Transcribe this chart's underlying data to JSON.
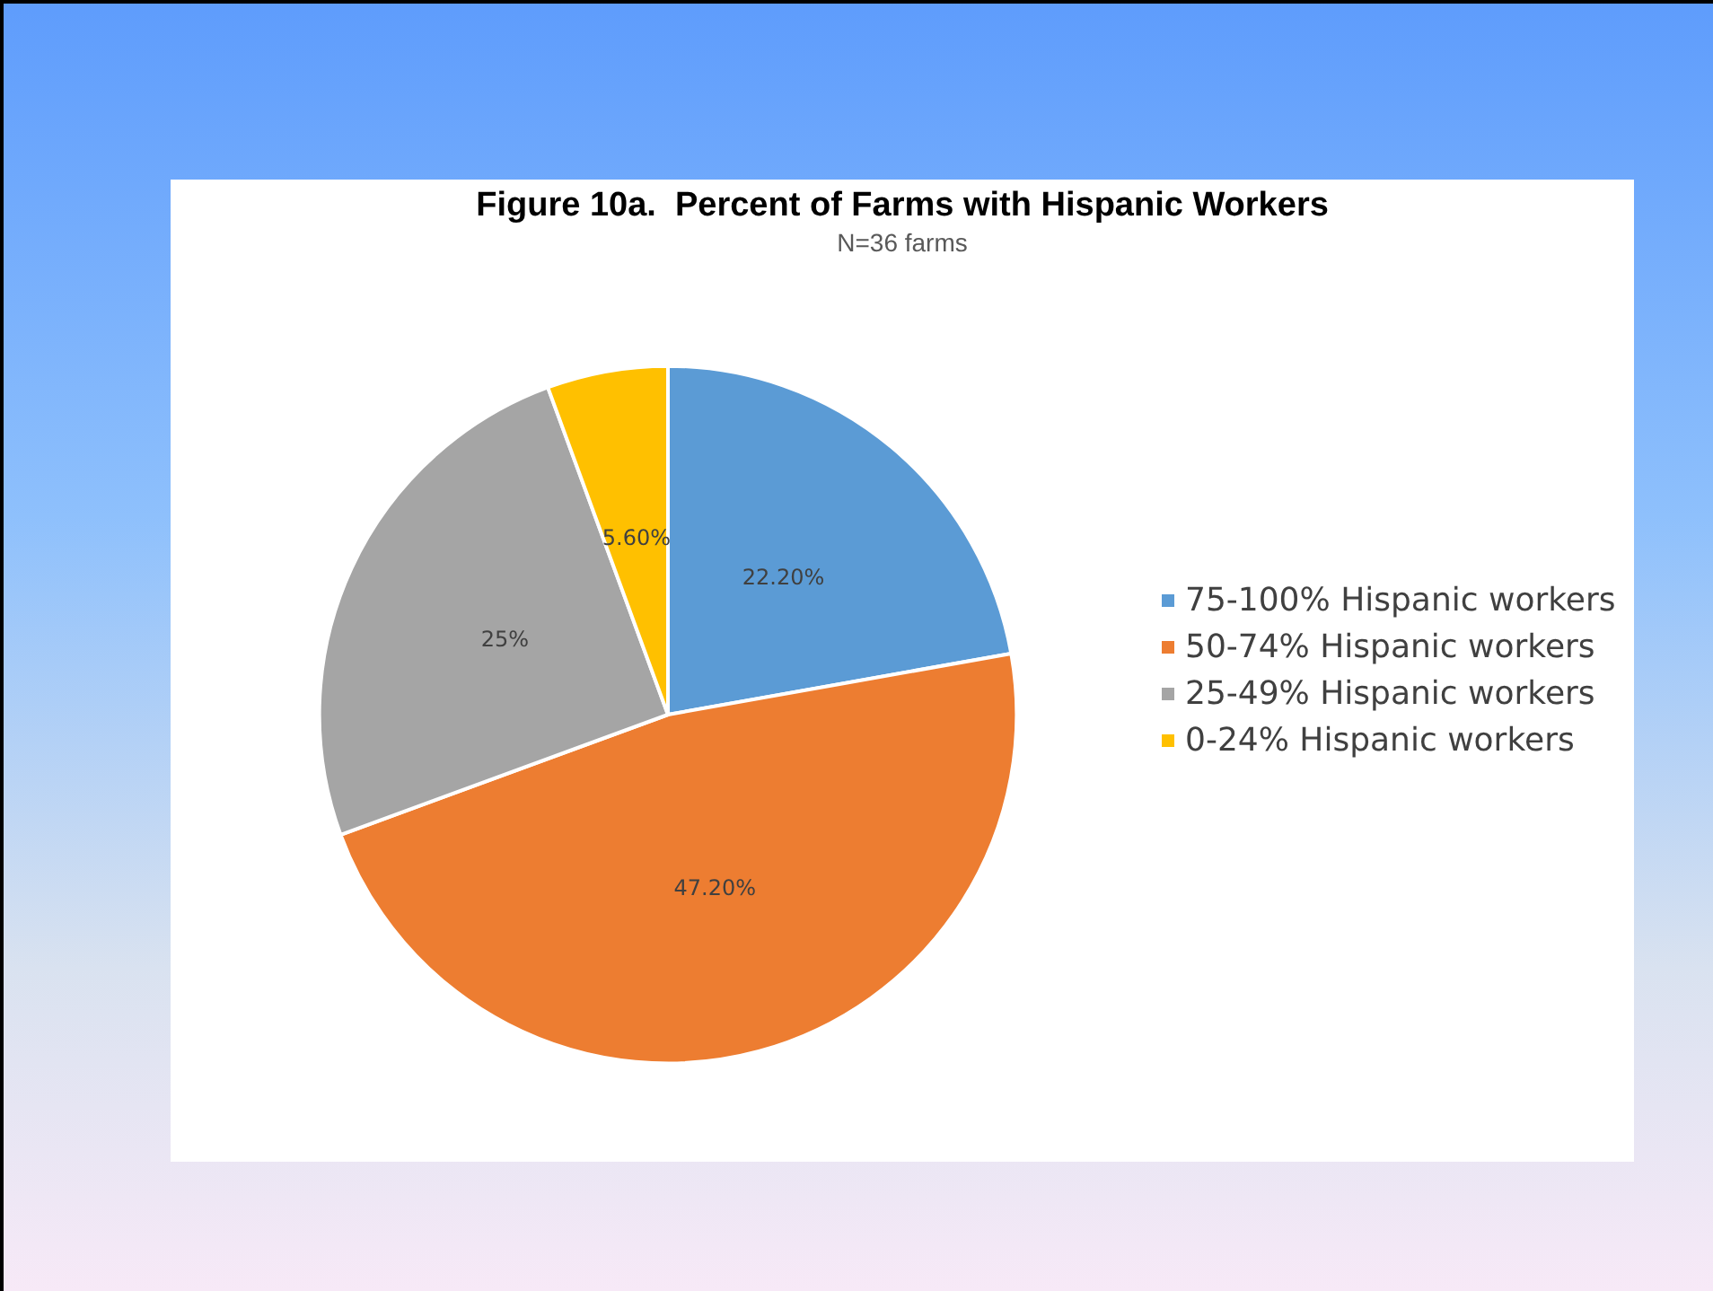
{
  "chart_data": {
    "type": "pie",
    "title": "Figure 10a.  Percent of Farms with Hispanic Workers",
    "subtitle": "N=36 farms",
    "categories": [
      "75-100% Hispanic workers",
      "50-74% Hispanic workers",
      "25-49% Hispanic workers",
      "0-24% Hispanic workers"
    ],
    "values": [
      22.2,
      47.2,
      25,
      5.6
    ],
    "value_labels": [
      "22.20%",
      "47.20%",
      "25%",
      "5.60%"
    ],
    "colors": [
      "#5b9bd5",
      "#ed7d31",
      "#a5a5a5",
      "#ffc000"
    ],
    "legend": "right"
  }
}
